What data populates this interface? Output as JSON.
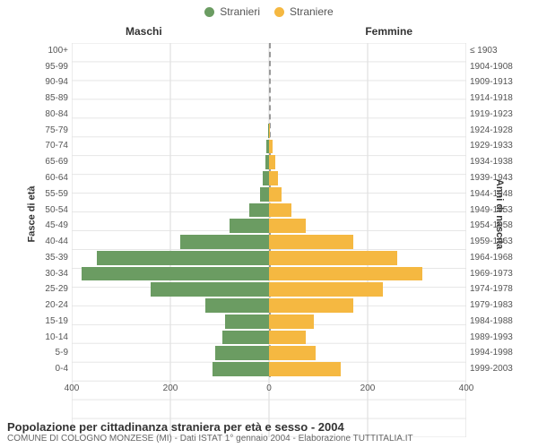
{
  "legend": [
    {
      "label": "Stranieri",
      "color": "#6b9c62"
    },
    {
      "label": "Straniere",
      "color": "#f5b841"
    }
  ],
  "columns": {
    "left_title": "Maschi",
    "right_title": "Femmine"
  },
  "y_axis_left_label": "Fasce di età",
  "y_axis_right_label": "Anni di nascita",
  "age_labels": [
    "100+",
    "95-99",
    "90-94",
    "85-89",
    "80-84",
    "75-79",
    "70-74",
    "65-69",
    "60-64",
    "55-59",
    "50-54",
    "45-49",
    "40-44",
    "35-39",
    "30-34",
    "25-29",
    "20-24",
    "15-19",
    "10-14",
    "5-9",
    "0-4"
  ],
  "year_labels": [
    "≤ 1903",
    "1904-1908",
    "1909-1913",
    "1914-1918",
    "1919-1923",
    "1924-1928",
    "1929-1933",
    "1934-1938",
    "1939-1943",
    "1944-1948",
    "1949-1953",
    "1954-1958",
    "1959-1963",
    "1964-1968",
    "1969-1973",
    "1974-1978",
    "1979-1983",
    "1984-1988",
    "1989-1993",
    "1994-1998",
    "1999-2003"
  ],
  "male_values": [
    0,
    0,
    0,
    0,
    0,
    2,
    5,
    8,
    12,
    18,
    40,
    80,
    180,
    350,
    380,
    240,
    130,
    90,
    95,
    110,
    115
  ],
  "female_values": [
    0,
    0,
    0,
    0,
    0,
    2,
    8,
    12,
    18,
    25,
    45,
    75,
    170,
    260,
    310,
    230,
    170,
    90,
    75,
    95,
    145
  ],
  "colors": {
    "male_bar": "#6b9c62",
    "female_bar": "#f5b841",
    "grid": "#e2e2e2",
    "axis": "#bfbfbf",
    "bg": "#ffffff"
  },
  "x_axis": {
    "min": 0,
    "max": 400,
    "step": 200
  },
  "caption": {
    "title": "Popolazione per cittadinanza straniera per età e sesso - 2004",
    "subtitle": "COMUNE DI COLOGNO MONZESE (MI) - Dati ISTAT 1° gennaio 2004 - Elaborazione TUTTITALIA.IT"
  },
  "chart_type": "population-pyramid"
}
